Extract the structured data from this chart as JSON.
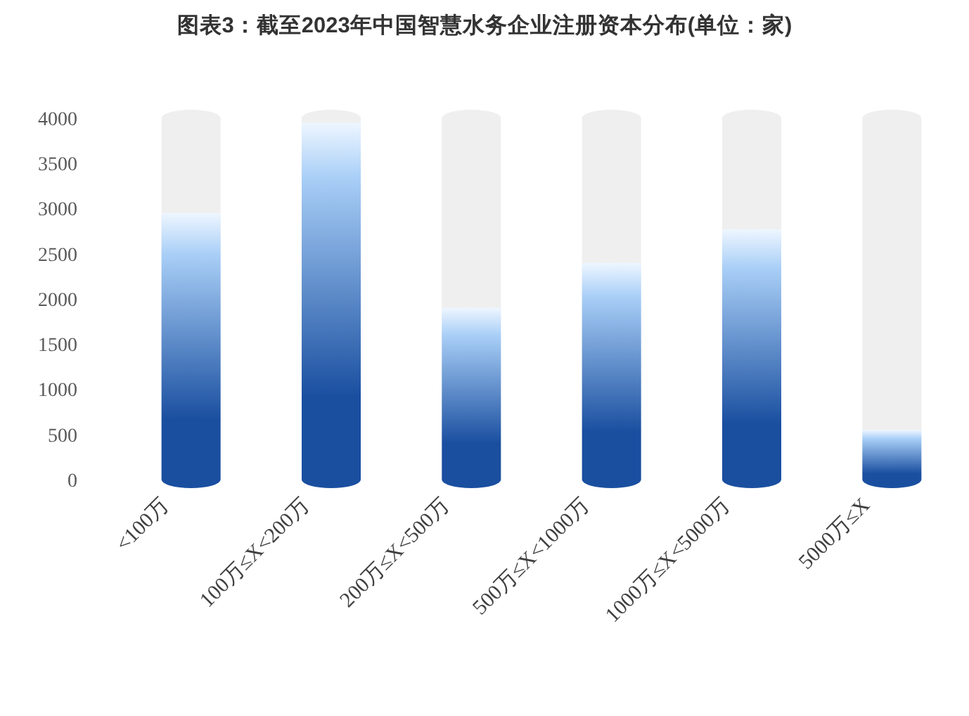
{
  "chart_data": {
    "type": "bar",
    "title": "图表3：截至2023年中国智慧水务企业注册资本分布(单位：家)",
    "categories": [
      "<100万",
      "100万≤X<200万",
      "200万≤X<500万",
      "500万≤X<1000万",
      "1000万≤X<5000万",
      "5000万≤X"
    ],
    "values": [
      2950,
      3950,
      1900,
      2400,
      2770,
      550
    ],
    "color": "#1a4fa0",
    "ylim": [
      0,
      4000
    ],
    "yticks": [
      0,
      500,
      1000,
      1500,
      2000,
      2500,
      3000,
      3500,
      4000
    ]
  }
}
